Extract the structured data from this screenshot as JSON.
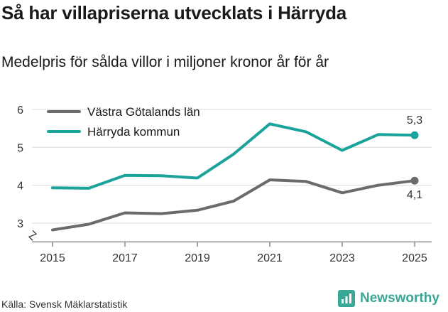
{
  "header": {
    "title": "Så har villapriserna utvecklats i Härryda",
    "subtitle": "Medelpris för sålda villor i miljoner kronor år för år"
  },
  "footer": {
    "source": "Källa: Svensk Mäklarstatistik",
    "brand": "Newsworthy",
    "brand_icon": "bar-chart-icon",
    "brand_color": "#3aa696"
  },
  "chart_data": {
    "type": "line",
    "x": [
      2015,
      2016,
      2017,
      2018,
      2019,
      2020,
      2021,
      2022,
      2023,
      2024,
      2025
    ],
    "x_ticks": [
      "2015",
      "2017",
      "2019",
      "2021",
      "2023",
      "2025"
    ],
    "y_ticks": [
      "3",
      "4",
      "5",
      "6"
    ],
    "ylim": [
      2.75,
      6
    ],
    "y_axis_break": true,
    "grid": true,
    "legend_position": "top-left",
    "series": [
      {
        "name": "Västra Götalands län",
        "color": "#6b6b6b",
        "values": [
          2.82,
          2.97,
          3.27,
          3.25,
          3.34,
          3.58,
          4.14,
          4.1,
          3.8,
          4.0,
          4.12
        ],
        "end_label": "4,1",
        "end_label_position": "below"
      },
      {
        "name": "Härryda kommun",
        "color": "#19a39a",
        "values": [
          3.93,
          3.92,
          4.26,
          4.25,
          4.19,
          4.82,
          5.62,
          5.41,
          4.92,
          5.34,
          5.32
        ],
        "end_label": "5,3",
        "end_label_position": "above"
      }
    ]
  }
}
